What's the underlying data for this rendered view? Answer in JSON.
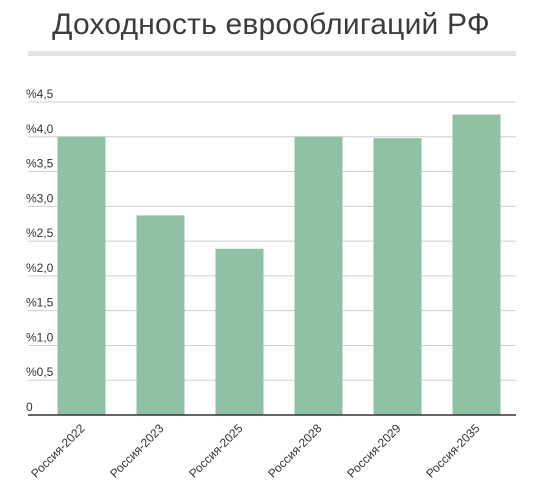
{
  "title": "Доходность еврооблигаций РФ",
  "colors": {
    "bar": "#8fc1a5",
    "grid": "#cfcfcf",
    "axis": "#333333",
    "title_rule": "#e3e3e3"
  },
  "chart_data": {
    "type": "bar",
    "title": "Доходность еврооблигаций РФ",
    "categories": [
      "Россия-2022",
      "Россия-2023",
      "Россия-2025",
      "Россия-2028",
      "Россия-2029",
      "Россия-2035"
    ],
    "values": [
      4.0,
      2.87,
      2.39,
      4.0,
      3.98,
      4.32
    ],
    "ylim": [
      0,
      4.5
    ],
    "yticks": [
      {
        "value": 0,
        "label": "0"
      },
      {
        "value": 0.5,
        "label": "%0,5"
      },
      {
        "value": 1.0,
        "label": "%1,0"
      },
      {
        "value": 1.5,
        "label": "%1,5"
      },
      {
        "value": 2.0,
        "label": "%2,0"
      },
      {
        "value": 2.5,
        "label": "%2,5"
      },
      {
        "value": 3.0,
        "label": "%3,0"
      },
      {
        "value": 3.5,
        "label": "%3,5"
      },
      {
        "value": 4.0,
        "label": "%4,0"
      },
      {
        "value": 4.5,
        "label": "%4,5"
      }
    ],
    "grid": true,
    "legend": "none"
  }
}
